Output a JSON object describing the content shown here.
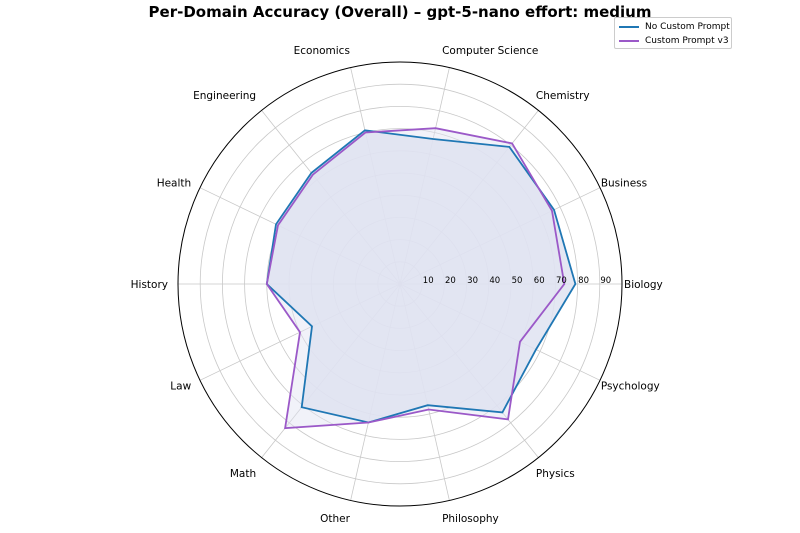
{
  "chart_data": {
    "type": "radar",
    "title": "Per-Domain Accuracy (Overall) – gpt-5-nano effort: medium",
    "categories": [
      "Biology",
      "Business",
      "Chemistry",
      "Computer Science",
      "Economics",
      "Engineering",
      "Health",
      "History",
      "Law",
      "Math",
      "Other",
      "Philosophy",
      "Physics",
      "Psychology"
    ],
    "r_ticks": [
      10,
      20,
      30,
      40,
      50,
      60,
      70,
      80,
      90
    ],
    "r_range": [
      0,
      100
    ],
    "grid": true,
    "legend_position": "top-right",
    "series": [
      {
        "name": "No Custom Prompt",
        "color": "#1f77b4",
        "values": [
          79,
          77,
          79,
          67,
          71,
          64,
          62,
          60,
          44,
          71,
          64,
          56,
          74,
          68
        ]
      },
      {
        "name": "Custom Prompt v3",
        "color": "#9b59c8",
        "values": [
          74,
          76,
          81,
          72,
          70,
          63,
          61,
          60,
          50,
          83,
          64,
          58,
          78,
          60
        ]
      }
    ],
    "fill_color": "#dfe3f1"
  }
}
